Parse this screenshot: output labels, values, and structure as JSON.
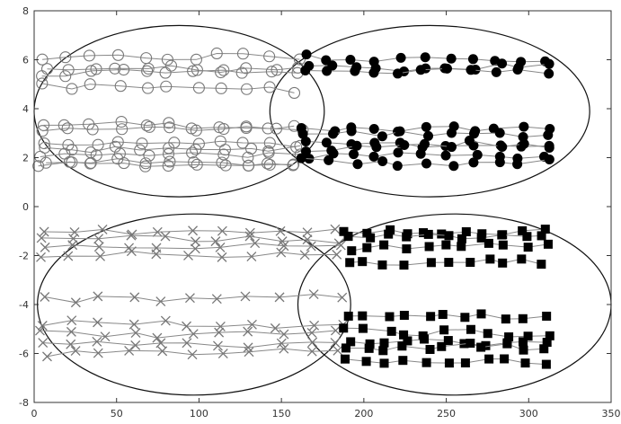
{
  "chart_data": {
    "type": "scatter",
    "title": "",
    "xlabel": "",
    "ylabel": "",
    "xlim": [
      0,
      350
    ],
    "ylim": [
      -8,
      8
    ],
    "xticks": [
      "0",
      "50",
      "100",
      "150",
      "200",
      "250",
      "300",
      "350"
    ],
    "yticks": [
      "8",
      "6",
      "4",
      "2",
      "0",
      "-2",
      "-4",
      "-6",
      "-8"
    ],
    "grid": false,
    "legend": "none",
    "colors": {
      "open": "#777777",
      "filled": "#000000",
      "axis": "#333333"
    },
    "groups": [
      {
        "marker": "open-circle",
        "x_range": [
          5,
          160
        ],
        "levels": [
          6.1,
          5.7,
          5.4,
          5.0,
          3.4,
          3.0,
          2.7,
          2.4,
          2.1,
          1.9,
          1.7
        ]
      },
      {
        "marker": "filled-circle",
        "x_range": [
          165,
          310
        ],
        "levels": [
          6.1,
          5.8,
          5.5,
          3.3,
          3.0,
          2.7,
          2.4,
          2.1,
          1.9
        ]
      },
      {
        "marker": "x-cross",
        "x_range": [
          5,
          185
        ],
        "levels": [
          -1.0,
          -1.3,
          -1.6,
          -2.0,
          -3.8,
          -4.8,
          -5.2,
          -5.6,
          -6.0
        ]
      },
      {
        "marker": "filled-square",
        "x_range": [
          190,
          310
        ],
        "levels": [
          -1.0,
          -1.3,
          -1.7,
          -2.3,
          -4.5,
          -5.0,
          -5.4,
          -5.8,
          -6.3
        ]
      }
    ],
    "annotations": [
      {
        "shape": "ellipse",
        "cx": 88,
        "cy": 3.9,
        "rx": 88,
        "ry": 3.5
      },
      {
        "shape": "ellipse",
        "cx": 240,
        "cy": 3.9,
        "rx": 97,
        "ry": 3.5
      },
      {
        "shape": "ellipse",
        "cx": 97,
        "cy": -4.0,
        "rx": 95,
        "ry": 3.7
      },
      {
        "shape": "ellipse",
        "cx": 255,
        "cy": -4.0,
        "rx": 95,
        "ry": 3.7
      }
    ]
  }
}
